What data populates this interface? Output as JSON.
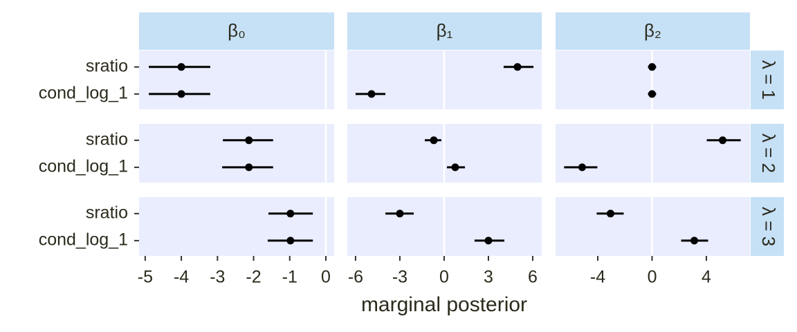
{
  "chart_data": {
    "type": "pointrange",
    "x_label": "marginal posterior",
    "categories": [
      "sratio",
      "cond_log_1"
    ],
    "ref_line": 0,
    "panel_color": "#e9edfd",
    "strip_color": "#c6e0f6",
    "point_color": "#000000",
    "columns": [
      {
        "label": "β₀",
        "xlim": [
          -5.17,
          0.23
        ],
        "xticks": [
          -5,
          -4,
          -3,
          -2,
          -1,
          0
        ]
      },
      {
        "label": "β₁",
        "xlim": [
          -6.56,
          6.61
        ],
        "xticks": [
          -6,
          -3,
          0,
          3,
          6
        ]
      },
      {
        "label": "β₂",
        "xlim": [
          -7.11,
          7.21
        ],
        "xticks": [
          -4,
          0,
          4
        ]
      }
    ],
    "rows": [
      {
        "label": "λ = 1",
        "panels": [
          {
            "estimate": [
              -4.0,
              -4.0
            ],
            "lower": [
              -4.9,
              -4.9
            ],
            "upper": [
              -3.2,
              -3.2
            ]
          },
          {
            "estimate": [
              4.97,
              -4.92
            ],
            "lower": [
              4.03,
              -6.0
            ],
            "upper": [
              6.05,
              -3.98
            ]
          },
          {
            "estimate": [
              0,
              0
            ],
            "lower": [
              -0.3,
              -0.3
            ],
            "upper": [
              0.3,
              0.3
            ]
          }
        ]
      },
      {
        "label": "λ = 2",
        "panels": [
          {
            "estimate": [
              -2.13,
              -2.13
            ],
            "lower": [
              -2.85,
              -2.87
            ],
            "upper": [
              -1.46,
              -1.46
            ]
          },
          {
            "estimate": [
              -0.7,
              0.75
            ],
            "lower": [
              -1.31,
              0.19
            ],
            "upper": [
              -0.19,
              1.41
            ]
          },
          {
            "estimate": [
              5.2,
              -5.15
            ],
            "lower": [
              4.03,
              -6.48
            ],
            "upper": [
              6.53,
              -4.03
            ]
          }
        ]
      },
      {
        "label": "λ = 3",
        "panels": [
          {
            "estimate": [
              -0.98,
              -0.98
            ],
            "lower": [
              -1.59,
              -1.61
            ],
            "upper": [
              -0.36,
              -0.36
            ]
          },
          {
            "estimate": [
              -3.0,
              3.0
            ],
            "lower": [
              -3.98,
              2.06
            ],
            "upper": [
              -2.06,
              4.08
            ]
          },
          {
            "estimate": [
              -3.06,
              3.11
            ],
            "lower": [
              -4.08,
              2.14
            ],
            "upper": [
              -2.09,
              4.13
            ]
          }
        ]
      }
    ]
  }
}
